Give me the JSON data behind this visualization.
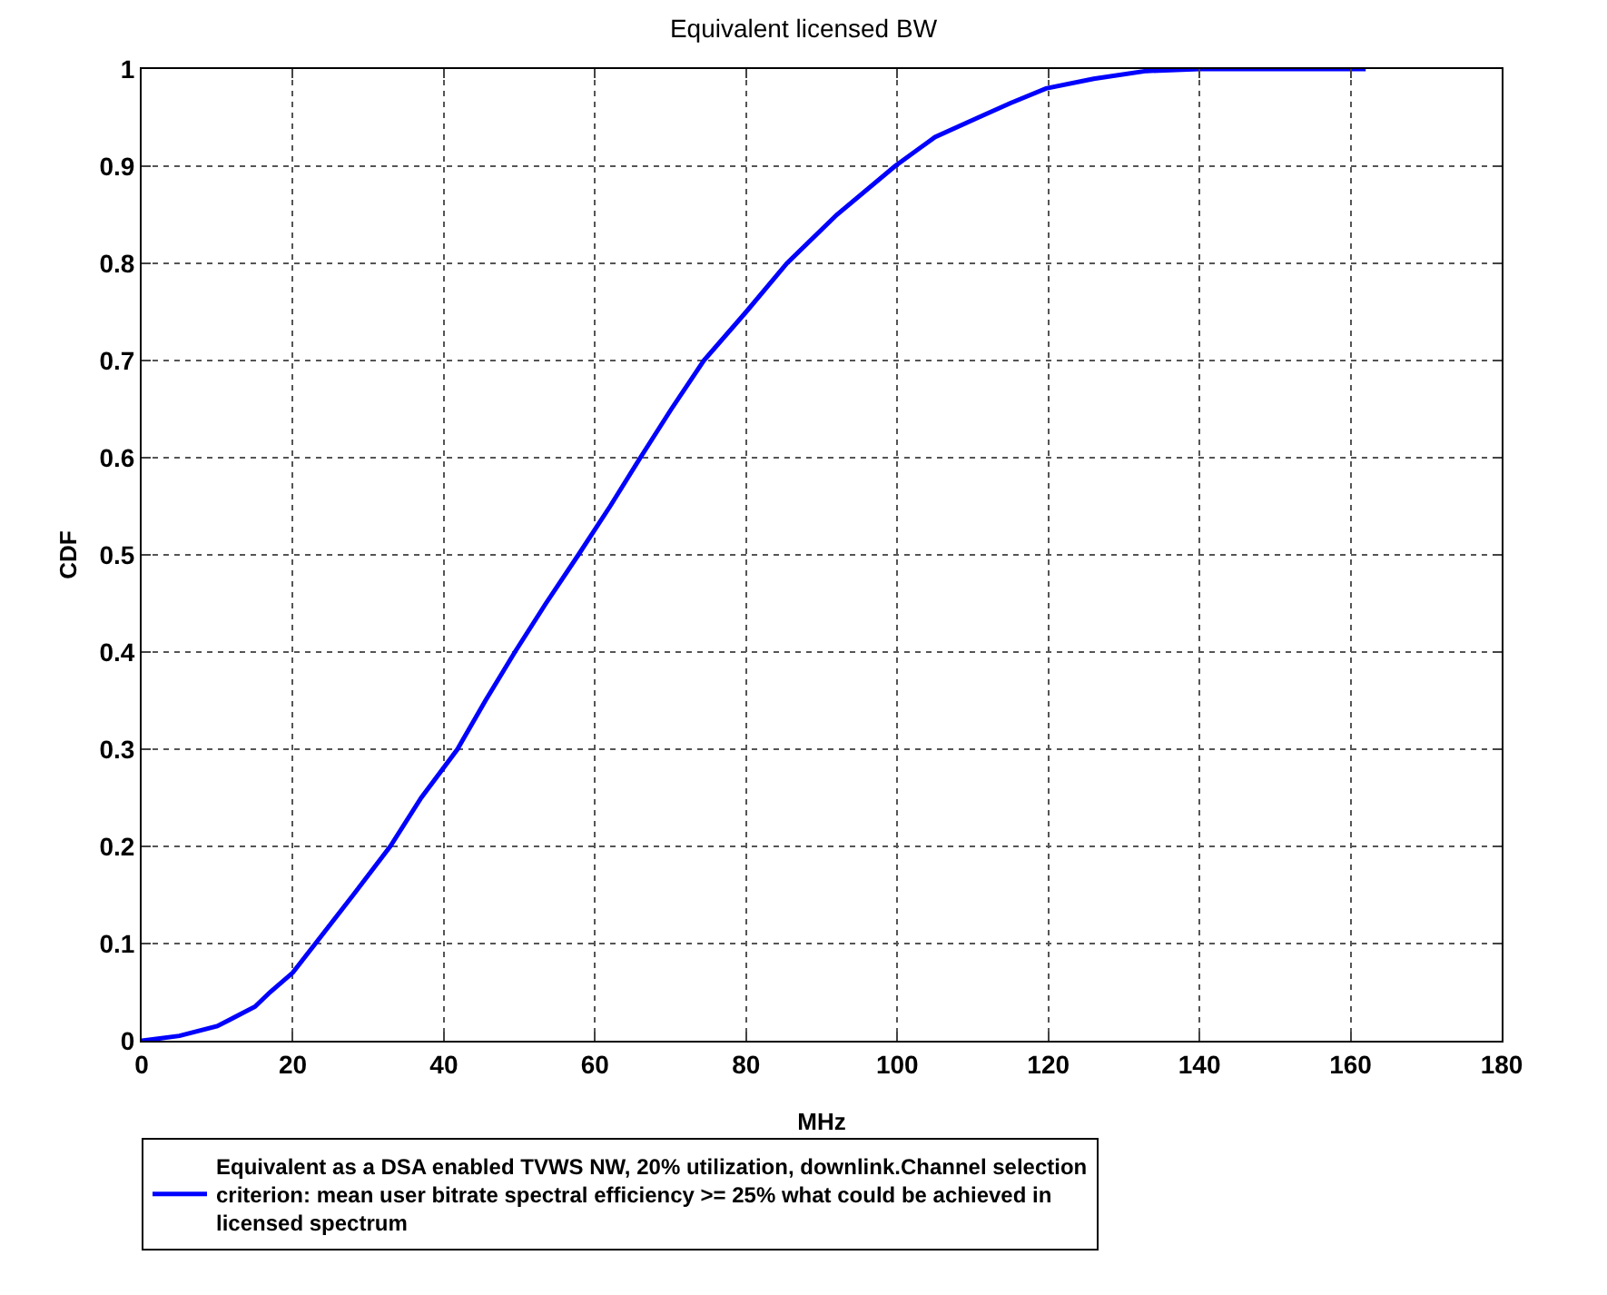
{
  "chart_data": {
    "type": "line",
    "title": "Equivalent licensed BW",
    "xlabel": "MHz",
    "ylabel": "CDF",
    "xlim": [
      0,
      180
    ],
    "xticks": [
      0,
      20,
      40,
      60,
      80,
      100,
      120,
      140,
      160,
      180
    ],
    "ylim": [
      0,
      1
    ],
    "yticks": [
      0,
      0.1,
      0.2,
      0.3,
      0.4,
      0.5,
      0.6,
      0.7,
      0.8,
      0.9,
      1
    ],
    "grid": true,
    "legend": "bottom",
    "marker": "none",
    "line_style": "solid",
    "series": [
      {
        "name": "Equivalent as a DSA enabled TVWS NW, 20% utilization, downlink.Channel selection criterion: mean user bitrate spectral efficiency >= 25% what could be achieved in licensed spectrum",
        "color": "#0000ff",
        "x": [
          0,
          5,
          10,
          15,
          17,
          20,
          23,
          28,
          32.9,
          37,
          41.8,
          45.5,
          49.4,
          53.5,
          57.8,
          62,
          66,
          70.1,
          74.4,
          80,
          85.4,
          92,
          99.7,
          105,
          110.7,
          115,
          119.7,
          126,
          133,
          140,
          150,
          162
        ],
        "values": [
          0,
          0.005,
          0.015,
          0.035,
          0.05,
          0.07,
          0.1,
          0.15,
          0.2,
          0.25,
          0.3,
          0.35,
          0.4,
          0.45,
          0.5,
          0.55,
          0.6,
          0.65,
          0.7,
          0.75,
          0.8,
          0.85,
          0.9,
          0.93,
          0.95,
          0.965,
          0.98,
          0.99,
          0.998,
          1,
          1,
          1
        ]
      }
    ]
  }
}
